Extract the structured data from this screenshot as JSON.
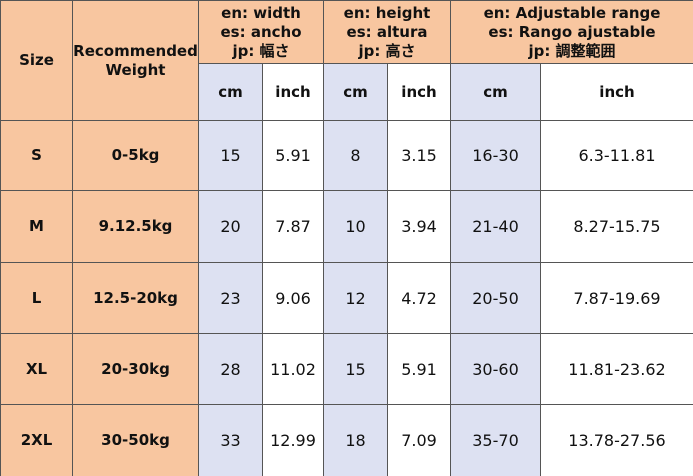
{
  "header": {
    "size": "Size",
    "weight": "Recommended Weight",
    "groups": [
      {
        "lines": [
          "en: width",
          "es: ancho",
          "jp: 幅さ"
        ]
      },
      {
        "lines": [
          "en: height",
          "es: altura",
          "jp: 高さ"
        ]
      },
      {
        "lines": [
          "en: Adjustable range",
          "es: Rango ajustable",
          "jp: 調整範囲"
        ]
      }
    ],
    "units": [
      "cm",
      "inch",
      "cm",
      "inch",
      "cm",
      "inch"
    ]
  },
  "table": {
    "rows": [
      [
        "S",
        "0-5kg",
        "15",
        "5.91",
        "8",
        "3.15",
        "16-30",
        "6.3-11.81"
      ],
      [
        "M",
        "9.12.5kg",
        "20",
        "7.87",
        "10",
        "3.94",
        "21-40",
        "8.27-15.75"
      ],
      [
        "L",
        "12.5-20kg",
        "23",
        "9.06",
        "12",
        "4.72",
        "20-50",
        "7.87-19.69"
      ],
      [
        "XL",
        "20-30kg",
        "28",
        "11.02",
        "15",
        "5.91",
        "30-60",
        "11.81-23.62"
      ],
      [
        "2XL",
        "30-50kg",
        "33",
        "12.99",
        "18",
        "7.09",
        "35-70",
        "13.78-27.56"
      ]
    ]
  }
}
